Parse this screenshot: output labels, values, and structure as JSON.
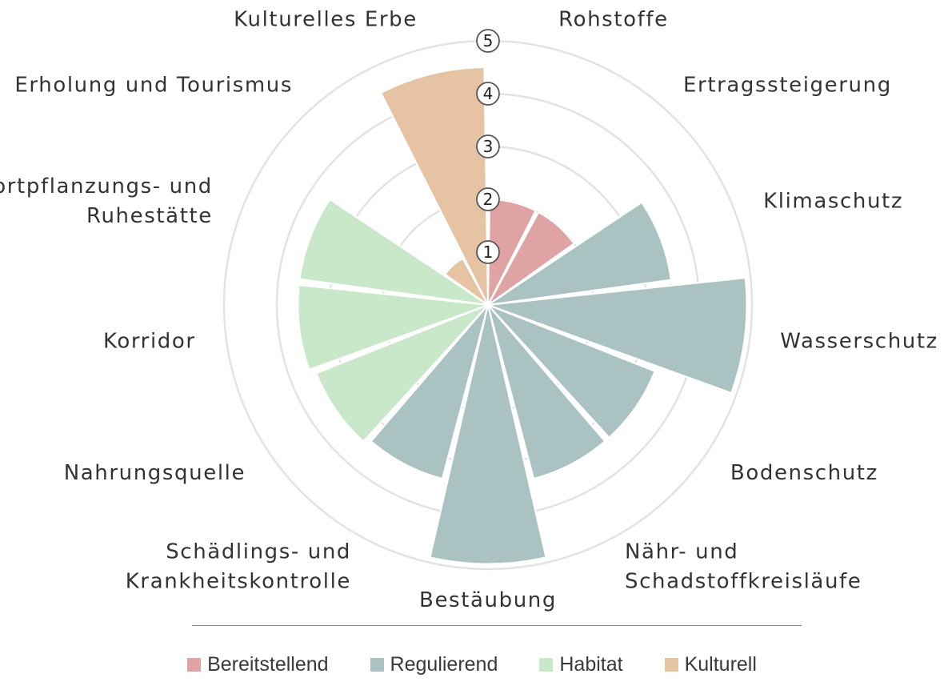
{
  "chart_data": {
    "type": "polar-bar",
    "rmax": 5,
    "ticks": [
      1,
      2,
      3,
      4,
      5
    ],
    "groups": [
      {
        "name": "Bereitstellend",
        "color": "#dfa3a4"
      },
      {
        "name": "Regulierend",
        "color": "#abc2c3"
      },
      {
        "name": "Habitat",
        "color": "#c8e8c9"
      },
      {
        "name": "Kulturell",
        "color": "#e5c3a3"
      }
    ],
    "categories": [
      {
        "label": [
          "Rohstoffe"
        ],
        "value": 2,
        "group": 0
      },
      {
        "label": [
          "Ertragssteigerung"
        ],
        "value": 2,
        "group": 0
      },
      {
        "label": [
          "Klimaschutz"
        ],
        "value": 3.5,
        "group": 1
      },
      {
        "label": [
          "Wasserschutz"
        ],
        "value": 4.9,
        "group": 1
      },
      {
        "label": [
          "Bodenschutz"
        ],
        "value": 3.4,
        "group": 1
      },
      {
        "label": [
          "Nähr- und",
          "Schadstoffkreisläufe"
        ],
        "value": 3.4,
        "group": 1
      },
      {
        "label": [
          "Bestäubung"
        ],
        "value": 4.9,
        "group": 1
      },
      {
        "label": [
          "Schädlings- und",
          "Krankheitskontrolle"
        ],
        "value": 3.4,
        "group": 1
      },
      {
        "label": [
          "Nahrungsquelle"
        ],
        "value": 3.5,
        "group": 2
      },
      {
        "label": [
          "Korridor"
        ],
        "value": 3.6,
        "group": 2
      },
      {
        "label": [
          "Fortpflanzungs- und",
          "Ruhestätte"
        ],
        "value": 3.6,
        "group": 2
      },
      {
        "label": [
          "Erholung und Tourismus"
        ],
        "value": 1,
        "group": 3
      },
      {
        "label": [
          "Kulturelles Erbe"
        ],
        "value": 4.5,
        "group": 3
      }
    ]
  },
  "legend": {
    "items": [
      "Bereitstellend",
      "Regulierend",
      "Habitat",
      "Kulturell"
    ],
    "colors": [
      "#dfa3a4",
      "#abc2c3",
      "#c8e8c9",
      "#e5c3a3"
    ]
  }
}
